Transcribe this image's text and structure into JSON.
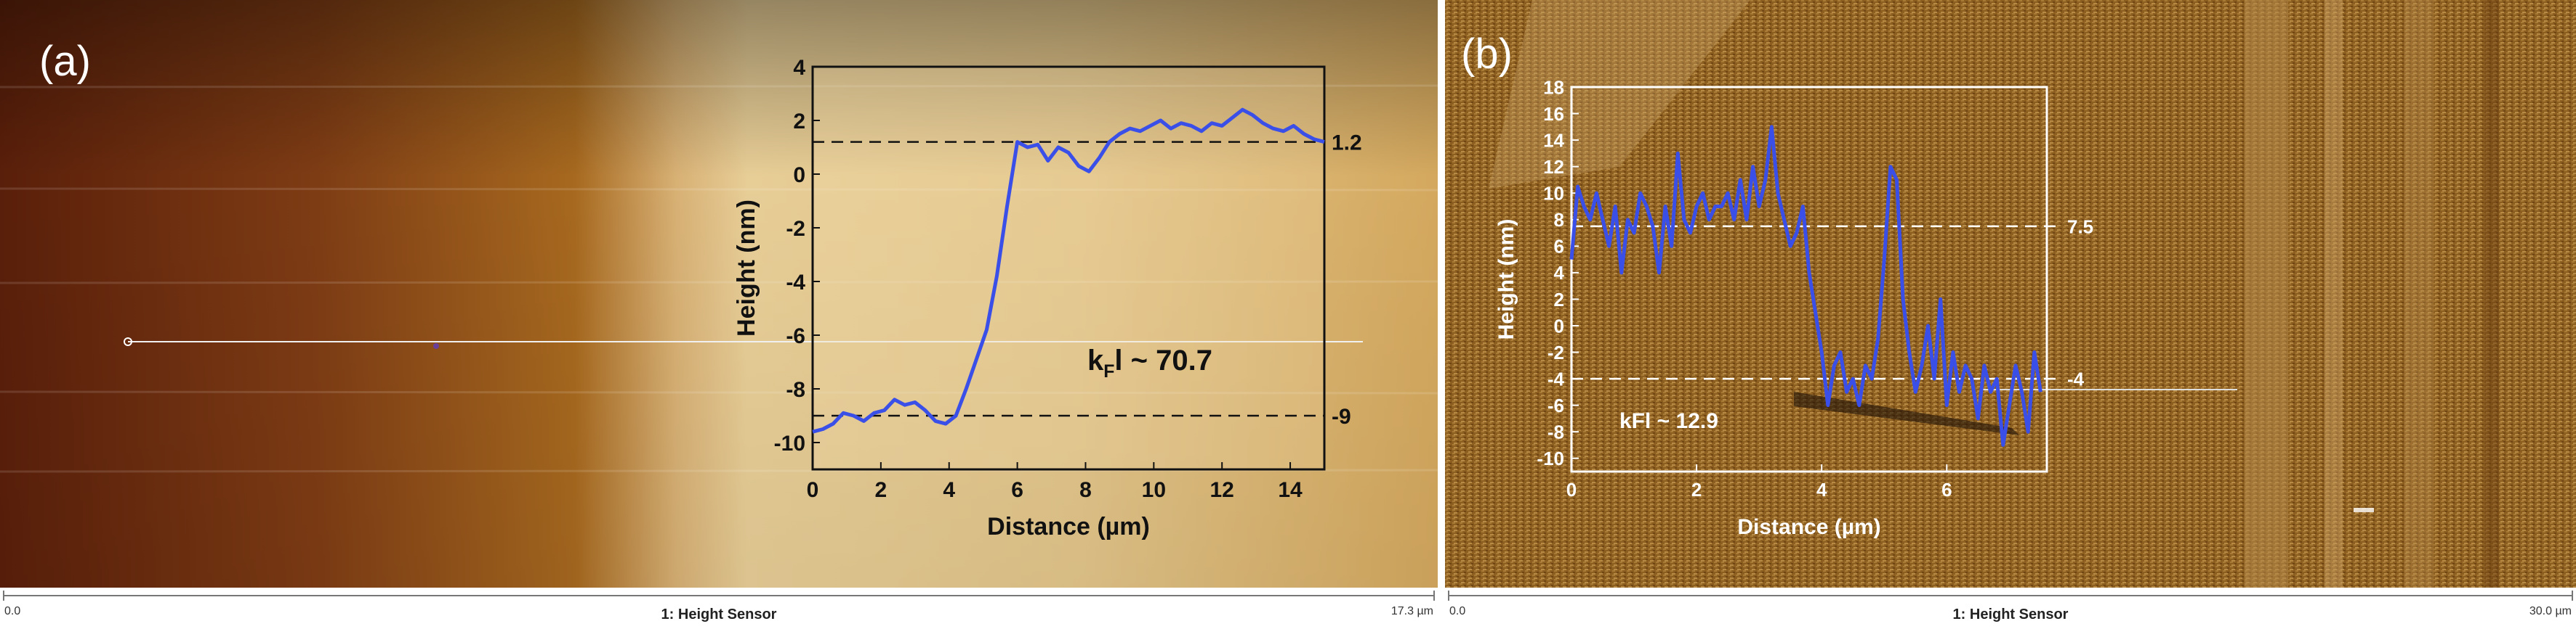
{
  "panels": [
    {
      "label": "(a)",
      "scalebar": {
        "start": "0.0",
        "title": "1: Height Sensor",
        "end": "17.3 µm"
      }
    },
    {
      "label": "(b)",
      "scalebar": {
        "start": "0.0",
        "title": "1: Height Sensor",
        "end": "30.0 µm"
      }
    }
  ],
  "colors": {
    "profile_line": "#3a4fe8",
    "inset_a_bg": "#f2dcaa",
    "panel_b_bg": "#8c5e1f"
  },
  "chart_data": [
    {
      "type": "line",
      "panel": "a",
      "xlabel": "Distance (µm)",
      "ylabel": "Height (nm)",
      "xlim": [
        0,
        15
      ],
      "ylim": [
        -11,
        4
      ],
      "xticks": [
        0,
        2,
        4,
        6,
        8,
        10,
        12,
        14
      ],
      "yticks": [
        4,
        2,
        0,
        -2,
        -4,
        -6,
        -8,
        -10
      ],
      "series": [
        {
          "x": [
            0,
            0.3,
            0.6,
            0.9,
            1.2,
            1.5,
            1.8,
            2.1,
            2.4,
            2.7,
            3.0,
            3.3,
            3.6,
            3.9,
            4.2,
            4.5,
            4.8,
            5.1,
            5.4,
            5.7,
            6.0,
            6.3,
            6.6,
            6.9,
            7.2,
            7.5,
            7.8,
            8.1,
            8.4,
            8.7,
            9.0,
            9.3,
            9.6,
            9.9,
            10.2,
            10.5,
            10.8,
            11.1,
            11.4,
            11.7,
            12.0,
            12.3,
            12.6,
            12.9,
            13.2,
            13.5,
            13.8,
            14.1,
            14.4,
            14.7,
            15.0
          ],
          "y": [
            -9.6,
            -9.5,
            -9.3,
            -8.9,
            -9.0,
            -9.2,
            -8.9,
            -8.8,
            -8.4,
            -8.6,
            -8.5,
            -8.8,
            -9.2,
            -9.3,
            -9.0,
            -8.0,
            -6.9,
            -5.8,
            -3.8,
            -1.2,
            1.2,
            1.0,
            1.1,
            0.5,
            1.0,
            0.8,
            0.3,
            0.1,
            0.6,
            1.2,
            1.5,
            1.7,
            1.6,
            1.8,
            2.0,
            1.7,
            1.9,
            1.8,
            1.6,
            1.9,
            1.8,
            2.1,
            2.4,
            2.2,
            1.9,
            1.7,
            1.6,
            1.8,
            1.5,
            1.3,
            1.2
          ]
        }
      ],
      "reference_lines": [
        {
          "y": 1.2,
          "label": "1.2"
        },
        {
          "y": -9,
          "label": "-9"
        }
      ],
      "annotation": {
        "label": "k",
        "subscript": "F",
        "suffix": "l ~ 70.7"
      }
    },
    {
      "type": "line",
      "panel": "b",
      "xlabel": "Distance (µm)",
      "ylabel": "Height (nm)",
      "xlim": [
        0,
        7.6
      ],
      "ylim": [
        -11,
        18
      ],
      "xticks": [
        0,
        2,
        4,
        6
      ],
      "yticks": [
        18,
        16,
        14,
        12,
        10,
        8,
        6,
        4,
        2,
        0,
        -2,
        -4,
        -6,
        -8,
        -10
      ],
      "series": [
        {
          "x": [
            0,
            0.1,
            0.2,
            0.3,
            0.4,
            0.5,
            0.6,
            0.7,
            0.8,
            0.9,
            1.0,
            1.1,
            1.2,
            1.3,
            1.4,
            1.5,
            1.6,
            1.7,
            1.8,
            1.9,
            2.0,
            2.1,
            2.2,
            2.3,
            2.4,
            2.5,
            2.6,
            2.7,
            2.8,
            2.9,
            3.0,
            3.1,
            3.2,
            3.3,
            3.4,
            3.5,
            3.6,
            3.7,
            3.8,
            3.9,
            4.0,
            4.1,
            4.2,
            4.3,
            4.4,
            4.5,
            4.6,
            4.7,
            4.8,
            4.9,
            5.0,
            5.1,
            5.2,
            5.3,
            5.4,
            5.5,
            5.6,
            5.7,
            5.8,
            5.9,
            6.0,
            6.1,
            6.2,
            6.3,
            6.4,
            6.5,
            6.6,
            6.7,
            6.8,
            6.9,
            7.0,
            7.1,
            7.2,
            7.3,
            7.4,
            7.5
          ],
          "y": [
            5,
            10.5,
            9,
            8,
            10,
            8,
            6,
            9,
            4,
            8,
            7,
            10,
            9,
            7.5,
            4,
            9,
            6,
            13,
            8,
            7,
            9,
            10,
            8,
            9,
            9,
            10,
            8,
            11,
            8,
            12,
            9,
            11,
            15,
            10,
            8,
            6,
            7,
            9,
            4,
            1,
            -2,
            -6,
            -3,
            -2,
            -5,
            -4,
            -6,
            -3,
            -4,
            -1,
            5,
            12,
            11,
            2,
            -2,
            -5,
            -3,
            0,
            -4,
            2,
            -6,
            -2,
            -5,
            -3,
            -4,
            -7,
            -3,
            -5,
            -4,
            -9,
            -6,
            -3,
            -5,
            -8,
            -2,
            -5
          ]
        }
      ],
      "reference_lines": [
        {
          "y": 7.5,
          "label": "7.5"
        },
        {
          "y": -4,
          "label": "-4"
        }
      ],
      "annotation": {
        "label": "kFl ~ 12.9"
      }
    }
  ]
}
